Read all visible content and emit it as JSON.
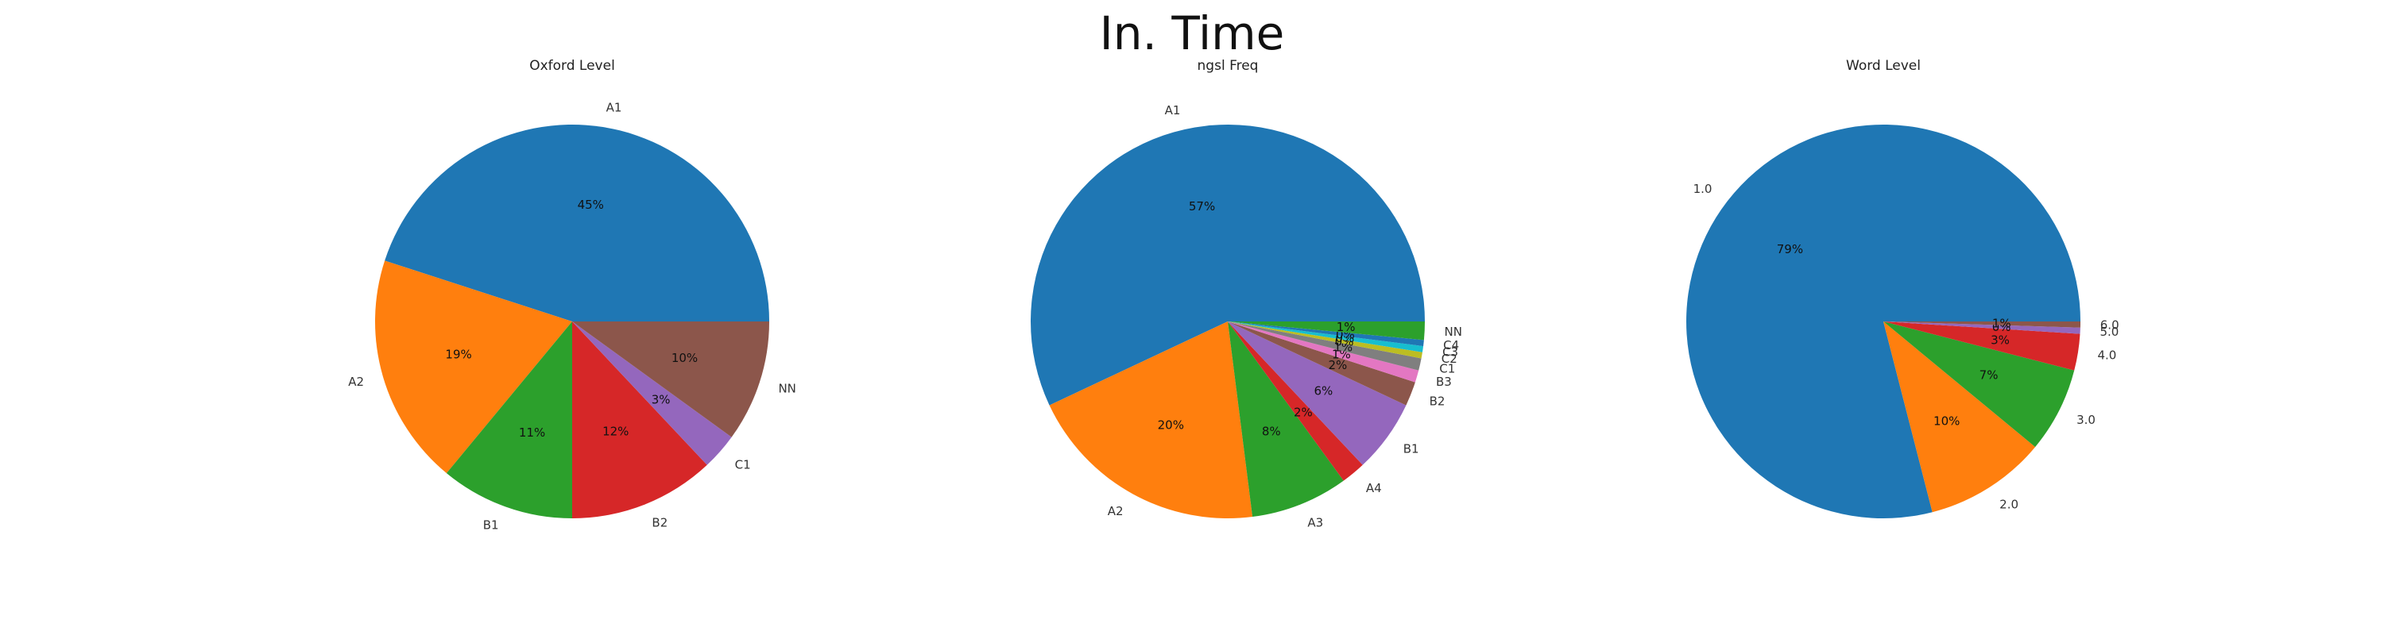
{
  "suptitle": "In. Time",
  "chart_data": [
    {
      "type": "pie",
      "title": "Oxford Level",
      "labels": [
        "A1",
        "A2",
        "B1",
        "B2",
        "C1",
        "NN"
      ],
      "values": [
        45,
        19,
        11,
        12,
        3,
        10
      ],
      "pct_labels": [
        "45%",
        "19%",
        "11%",
        "12%",
        "3%",
        "10%"
      ],
      "colors": [
        "#1f77b4",
        "#ff7f0e",
        "#2ca02c",
        "#d62728",
        "#9467bd",
        "#8c564b"
      ],
      "start_angle": 0,
      "direction": "counterclockwise"
    },
    {
      "type": "pie",
      "title": "ngsl Freq",
      "labels": [
        "A1",
        "A2",
        "A3",
        "A4",
        "B1",
        "B2",
        "B3",
        "C1",
        "C2",
        "C3",
        "C4",
        "NN"
      ],
      "values": [
        57,
        20,
        8,
        2,
        6,
        2,
        1,
        1,
        0.5,
        0.5,
        0.5,
        1.5
      ],
      "pct_labels": [
        "57%",
        "20%",
        "8%",
        "2%",
        "6%",
        "2%",
        "1%",
        "1%",
        "0%",
        "0%",
        "0%",
        "1%"
      ],
      "colors": [
        "#1f77b4",
        "#ff7f0e",
        "#2ca02c",
        "#d62728",
        "#9467bd",
        "#8c564b",
        "#e377c2",
        "#7f7f7f",
        "#bcbd22",
        "#17becf",
        "#1f77b4",
        "#2ca02c"
      ],
      "start_angle": 0,
      "direction": "counterclockwise"
    },
    {
      "type": "pie",
      "title": "Word Level",
      "labels": [
        "1.0",
        "2.0",
        "3.0",
        "4.0",
        "5.0",
        "6.0"
      ],
      "values": [
        79,
        10,
        7,
        3,
        0.5,
        0.5
      ],
      "pct_labels": [
        "79%",
        "10%",
        "7%",
        "3%",
        "0%",
        "1%"
      ],
      "colors": [
        "#1f77b4",
        "#ff7f0e",
        "#2ca02c",
        "#d62728",
        "#9467bd",
        "#8c564b"
      ],
      "start_angle": 0,
      "direction": "counterclockwise"
    }
  ]
}
